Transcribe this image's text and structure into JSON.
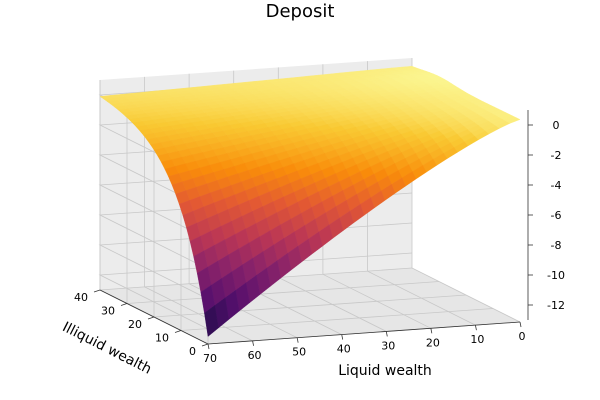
{
  "chart_data": {
    "type": "surface",
    "title": "Deposit",
    "xlabel": "Liquid wealth",
    "ylabel": "Illiquid wealth",
    "zlabel": "",
    "xlim": [
      0,
      70
    ],
    "ylim": [
      0,
      40
    ],
    "zlim": [
      -13,
      1
    ],
    "xticks": [
      70,
      60,
      50,
      40,
      30,
      20,
      10,
      0
    ],
    "yticks": [
      0,
      10,
      20,
      30,
      40
    ],
    "zticks": [
      0,
      -2,
      -4,
      -6,
      -8,
      -10,
      -12
    ],
    "colormap": "inferno",
    "grid": true,
    "surface_points": [
      {
        "liquid": 0,
        "illiquid": 40,
        "deposit": 0.6
      },
      {
        "liquid": 70,
        "illiquid": 40,
        "deposit": 0.4
      },
      {
        "liquid": 0,
        "illiquid": 0,
        "deposit": 0.5
      },
      {
        "liquid": 70,
        "illiquid": 15,
        "deposit": -5.5
      },
      {
        "liquid": 70,
        "illiquid": 8,
        "deposit": -9
      },
      {
        "liquid": 70,
        "illiquid": 0,
        "deposit": -12.5
      }
    ]
  }
}
